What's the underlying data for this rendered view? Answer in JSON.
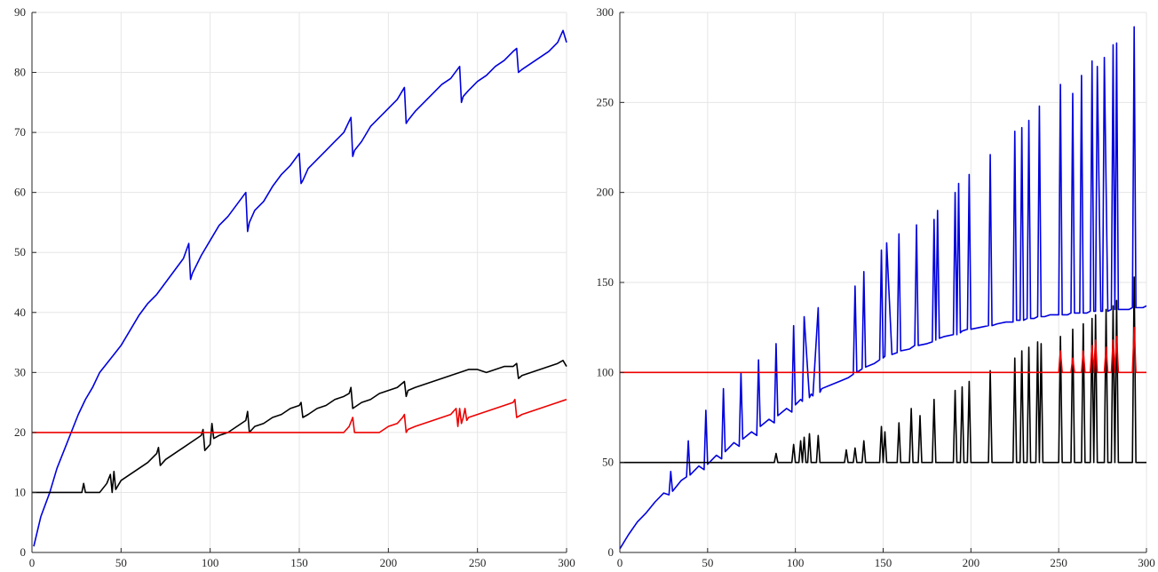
{
  "chart_data": [
    {
      "type": "line",
      "title": "",
      "xlabel": "",
      "ylabel": "",
      "xlim": [
        0,
        300
      ],
      "ylim": [
        0,
        90
      ],
      "xticks": [
        0,
        50,
        100,
        150,
        200,
        250,
        300
      ],
      "yticks": [
        0,
        10,
        20,
        30,
        40,
        50,
        60,
        70,
        80,
        90
      ],
      "grid": true,
      "legend": "none",
      "series": [
        {
          "color": "#0000dd",
          "x": [
            1,
            5,
            10,
            14,
            18,
            22,
            26,
            30,
            34,
            38,
            42,
            46,
            50,
            55,
            60,
            65,
            70,
            75,
            80,
            85,
            88,
            89,
            90,
            95,
            100,
            105,
            110,
            115,
            120,
            121,
            122,
            125,
            130,
            135,
            140,
            145,
            150,
            151,
            152,
            155,
            160,
            165,
            170,
            175,
            179,
            180,
            181,
            185,
            190,
            195,
            200,
            205,
            209,
            210,
            211,
            215,
            220,
            225,
            230,
            235,
            240,
            241,
            242,
            245,
            250,
            255,
            260,
            265,
            270,
            272,
            273,
            275,
            280,
            285,
            290,
            295,
            298,
            300
          ],
          "values": [
            1,
            6,
            10,
            14,
            17,
            20,
            23,
            25.5,
            27.5,
            30,
            31.5,
            33,
            34.5,
            37,
            39.5,
            41.5,
            43,
            45,
            47,
            49,
            51.5,
            45.5,
            46.5,
            49.5,
            52,
            54.5,
            56,
            58,
            60,
            53.5,
            55,
            57,
            58.5,
            61,
            63,
            64.5,
            66.5,
            61.5,
            62,
            64,
            65.5,
            67,
            68.5,
            70,
            72.5,
            66,
            67,
            68.5,
            71,
            72.5,
            74,
            75.5,
            77.5,
            71.5,
            72,
            73.5,
            75,
            76.5,
            78,
            79,
            81,
            75,
            76,
            77,
            78.5,
            79.5,
            81,
            82,
            83.5,
            84,
            80,
            80.5,
            81.5,
            82.5,
            83.5,
            85,
            87,
            85
          ]
        },
        {
          "color": "#000000",
          "x": [
            0,
            10,
            28,
            29,
            30,
            38,
            42,
            44,
            45,
            46,
            47,
            48,
            50,
            55,
            60,
            65,
            70,
            71,
            72,
            75,
            80,
            85,
            90,
            95,
            96,
            97,
            100,
            101,
            102,
            105,
            110,
            115,
            120,
            121,
            122,
            125,
            130,
            135,
            140,
            145,
            150,
            151,
            152,
            155,
            160,
            165,
            170,
            175,
            178,
            179,
            180,
            185,
            190,
            195,
            200,
            205,
            209,
            210,
            211,
            215,
            220,
            225,
            230,
            235,
            240,
            245,
            250,
            255,
            260,
            265,
            270,
            272,
            273,
            275,
            280,
            285,
            290,
            295,
            298,
            300
          ],
          "values": [
            10,
            10,
            10,
            11.5,
            10,
            10,
            11.5,
            13,
            10,
            13.5,
            10.5,
            11,
            12,
            13,
            14,
            15,
            16.5,
            17.5,
            14.5,
            15.5,
            16.5,
            17.5,
            18.5,
            19.5,
            20.5,
            17,
            18,
            21.5,
            19,
            19.5,
            20,
            21,
            22,
            23.5,
            20,
            21,
            21.5,
            22.5,
            23,
            24,
            24.5,
            25,
            22.5,
            23,
            24,
            24.5,
            25.5,
            26,
            26.5,
            27.5,
            24,
            25,
            25.5,
            26.5,
            27,
            27.5,
            28.5,
            26,
            27,
            27.5,
            28,
            28.5,
            29,
            29.5,
            30,
            30.5,
            30.5,
            30,
            30.5,
            31,
            31,
            31.5,
            29,
            29.5,
            30,
            30.5,
            31,
            31.5,
            32,
            31
          ]
        },
        {
          "color": "#ee0000",
          "x": [
            0,
            175,
            178,
            180,
            181,
            185,
            190,
            195,
            200,
            205,
            208,
            209,
            210,
            211,
            215,
            220,
            225,
            230,
            235,
            238,
            239,
            240,
            241,
            242,
            243,
            244,
            245,
            250,
            255,
            260,
            265,
            270,
            271,
            272,
            275,
            280,
            285,
            290,
            295,
            300
          ],
          "values": [
            20,
            20,
            21,
            22.5,
            20,
            20,
            20,
            20,
            21,
            21.5,
            22.5,
            23,
            20,
            20.5,
            21,
            21.5,
            22,
            22.5,
            23,
            24,
            21,
            24,
            21.5,
            22.5,
            24,
            22,
            22.5,
            23,
            23.5,
            24,
            24.5,
            25,
            25.5,
            22.5,
            23,
            23.5,
            24,
            24.5,
            25,
            25.5
          ]
        }
      ]
    },
    {
      "type": "line",
      "title": "",
      "xlabel": "",
      "ylabel": "",
      "xlim": [
        0,
        300
      ],
      "ylim": [
        0,
        300
      ],
      "xticks": [
        0,
        50,
        100,
        150,
        200,
        250,
        300
      ],
      "yticks": [
        0,
        50,
        100,
        150,
        200,
        250,
        300
      ],
      "grid": true,
      "legend": "none",
      "series": [
        {
          "color": "#0000dd",
          "x": [
            0,
            5,
            10,
            15,
            20,
            25,
            28,
            29,
            30,
            35,
            38,
            39,
            40,
            45,
            48,
            49,
            50,
            55,
            58,
            59,
            60,
            65,
            68,
            69,
            70,
            75,
            78,
            79,
            80,
            85,
            88,
            89,
            90,
            95,
            98,
            99,
            100,
            103,
            104,
            105,
            108,
            109,
            110,
            113,
            114,
            115,
            120,
            125,
            130,
            133,
            134,
            135,
            138,
            139,
            140,
            145,
            148,
            149,
            150,
            151,
            152,
            155,
            158,
            159,
            160,
            165,
            168,
            169,
            170,
            175,
            178,
            179,
            180,
            181,
            182,
            185,
            190,
            191,
            192,
            193,
            194,
            195,
            198,
            199,
            200,
            205,
            210,
            211,
            212,
            215,
            220,
            224,
            225,
            226,
            228,
            229,
            230,
            232,
            233,
            234,
            236,
            238,
            239,
            240,
            241,
            242,
            245,
            250,
            251,
            252,
            255,
            257,
            258,
            259,
            262,
            263,
            264,
            266,
            268,
            269,
            270,
            271,
            272,
            274,
            275,
            276,
            278,
            280,
            281,
            282,
            283,
            284,
            285,
            288,
            290,
            292,
            293,
            294,
            295,
            298,
            300
          ],
          "values": [
            2,
            10,
            17,
            22,
            28,
            33,
            32,
            45,
            34,
            40,
            42,
            62,
            43,
            48,
            46,
            79,
            49,
            54,
            52,
            91,
            56,
            61,
            59,
            100,
            63,
            67,
            65,
            107,
            70,
            74,
            72,
            116,
            76,
            80,
            78,
            126,
            82,
            85,
            84,
            131,
            86,
            88,
            87,
            136,
            89,
            91,
            93,
            95,
            97,
            99,
            148,
            100,
            102,
            156,
            103,
            105,
            107,
            168,
            108,
            109,
            172,
            110,
            111,
            177,
            112,
            113,
            115,
            182,
            115,
            116,
            117,
            185,
            118,
            190,
            119,
            120,
            121,
            200,
            121,
            205,
            122,
            123,
            124,
            210,
            124,
            125,
            126,
            221,
            126,
            127,
            128,
            128,
            234,
            129,
            129,
            236,
            129,
            130,
            240,
            130,
            130,
            131,
            248,
            131,
            131,
            131,
            132,
            132,
            260,
            132,
            132,
            133,
            255,
            133,
            133,
            265,
            133,
            133,
            134,
            273,
            134,
            134,
            270,
            134,
            134,
            275,
            134,
            135,
            282,
            135,
            283,
            135,
            135,
            135,
            135,
            136,
            292,
            136,
            136,
            136,
            137
          ]
        },
        {
          "color": "#000000",
          "x": [
            0,
            88,
            89,
            90,
            98,
            99,
            100,
            102,
            103,
            104,
            105,
            106,
            107,
            108,
            109,
            110,
            112,
            113,
            114,
            128,
            129,
            130,
            133,
            134,
            135,
            138,
            139,
            140,
            148,
            149,
            150,
            151,
            152,
            158,
            159,
            160,
            165,
            166,
            167,
            170,
            171,
            172,
            178,
            179,
            180,
            190,
            191,
            192,
            194,
            195,
            196,
            198,
            199,
            200,
            210,
            211,
            212,
            224,
            225,
            226,
            228,
            229,
            230,
            232,
            233,
            234,
            237,
            238,
            239,
            240,
            241,
            242,
            250,
            251,
            252,
            257,
            258,
            259,
            263,
            264,
            265,
            268,
            269,
            270,
            271,
            272,
            276,
            277,
            278,
            280,
            281,
            282,
            283,
            284,
            285,
            292,
            293,
            294,
            295,
            300
          ],
          "values": [
            50,
            50,
            55,
            50,
            50,
            60,
            50,
            50,
            62,
            50,
            64,
            50,
            50,
            66,
            50,
            50,
            50,
            65,
            50,
            50,
            57,
            50,
            50,
            58,
            50,
            50,
            62,
            50,
            50,
            70,
            50,
            67,
            50,
            50,
            72,
            50,
            50,
            80,
            50,
            50,
            76,
            50,
            50,
            85,
            50,
            50,
            90,
            50,
            50,
            92,
            50,
            50,
            95,
            50,
            50,
            101,
            50,
            50,
            108,
            50,
            50,
            112,
            50,
            50,
            114,
            50,
            50,
            117,
            50,
            116,
            50,
            50,
            50,
            120,
            50,
            50,
            124,
            50,
            50,
            127,
            50,
            50,
            130,
            50,
            132,
            50,
            50,
            135,
            50,
            50,
            137,
            50,
            140,
            50,
            50,
            50,
            153,
            50,
            50,
            50
          ]
        },
        {
          "color": "#ee0000",
          "x": [
            0,
            250,
            251,
            252,
            257,
            258,
            259,
            263,
            264,
            265,
            268,
            269,
            270,
            271,
            272,
            276,
            277,
            278,
            280,
            281,
            282,
            283,
            284,
            285,
            292,
            293,
            294,
            295,
            300
          ],
          "values": [
            100,
            100,
            112,
            100,
            100,
            108,
            100,
            100,
            112,
            100,
            100,
            115,
            100,
            118,
            100,
            100,
            114,
            100,
            100,
            118,
            100,
            120,
            100,
            100,
            100,
            125,
            100,
            100,
            100
          ]
        }
      ]
    }
  ]
}
